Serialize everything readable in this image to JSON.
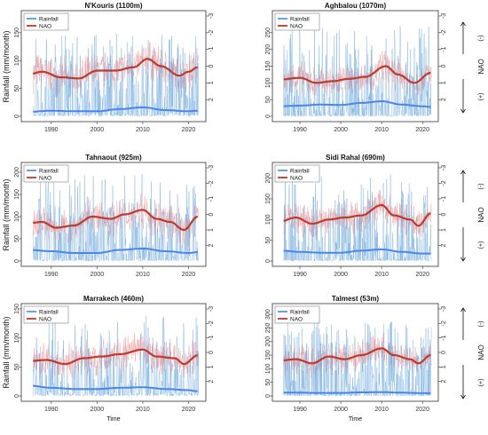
{
  "chart_data": [
    {
      "type": "line",
      "title": "N'Kouris (1100m)",
      "ylabel": "",
      "xlabel": "",
      "ylim": [
        0,
        180
      ],
      "yticks": [
        0,
        50,
        100,
        150
      ],
      "x_range": [
        1985,
        2023
      ],
      "xticks": [
        1990,
        2000,
        2010,
        2020
      ],
      "y2lim": [
        3,
        -3
      ],
      "y2ticks": [
        -3,
        -2,
        -1,
        0,
        1,
        2
      ],
      "legend": "top-left",
      "series": [
        {
          "name": "Rainfall",
          "color": "#6fa8dc",
          "smooth_color": "#4a86e8",
          "smooth": [
            [
              1985,
              8
            ],
            [
              1990,
              10
            ],
            [
              1995,
              9
            ],
            [
              2000,
              9
            ],
            [
              2005,
              13
            ],
            [
              2010,
              16
            ],
            [
              2015,
              11
            ],
            [
              2020,
              9
            ],
            [
              2022,
              10
            ]
          ],
          "spike_mean": 25,
          "spike_max": 150
        },
        {
          "name": "NAO",
          "color": "#c0392b",
          "band_color": "#f4a6a6",
          "smooth": [
            [
              1985,
              75
            ],
            [
              1988,
              80
            ],
            [
              1992,
              70
            ],
            [
              1996,
              68
            ],
            [
              2000,
              82
            ],
            [
              2004,
              82
            ],
            [
              2008,
              88
            ],
            [
              2011,
              103
            ],
            [
              2014,
              90
            ],
            [
              2018,
              73
            ],
            [
              2020,
              80
            ],
            [
              2022,
              88
            ]
          ],
          "band": 25
        }
      ]
    },
    {
      "type": "line",
      "title": "Aghbalou (1070m)",
      "ylabel": "",
      "xlabel": "",
      "ylim": [
        0,
        300
      ],
      "yticks": [
        0,
        50,
        100,
        150,
        200,
        250
      ],
      "x_range": [
        1985,
        2023
      ],
      "xticks": [
        1990,
        2000,
        2010,
        2020
      ],
      "y2lim": [
        3,
        -3
      ],
      "y2ticks": [
        -3,
        -2,
        -1,
        0,
        1,
        2
      ],
      "legend": "top-left",
      "series": [
        {
          "name": "Rainfall",
          "color": "#6fa8dc",
          "smooth_color": "#4a86e8",
          "smooth": [
            [
              1985,
              30
            ],
            [
              1990,
              32
            ],
            [
              1995,
              35
            ],
            [
              2000,
              34
            ],
            [
              2005,
              40
            ],
            [
              2010,
              45
            ],
            [
              2015,
              35
            ],
            [
              2020,
              30
            ],
            [
              2022,
              28
            ]
          ],
          "spike_mean": 55,
          "spike_max": 270
        },
        {
          "name": "NAO",
          "color": "#c0392b",
          "band_color": "#f4a6a6",
          "smooth": [
            [
              1985,
              110
            ],
            [
              1990,
              115
            ],
            [
              1994,
              100
            ],
            [
              1998,
              105
            ],
            [
              2002,
              112
            ],
            [
              2006,
              118
            ],
            [
              2011,
              150
            ],
            [
              2014,
              125
            ],
            [
              2018,
              100
            ],
            [
              2022,
              130
            ]
          ],
          "band": 35
        }
      ]
    },
    {
      "type": "line",
      "title": "Tahnaout (925m)",
      "ylabel": "",
      "xlabel": "",
      "ylim": [
        0,
        210
      ],
      "yticks": [
        0,
        50,
        100,
        150,
        200
      ],
      "x_range": [
        1985,
        2023
      ],
      "xticks": [
        1990,
        2000,
        2010,
        2020
      ],
      "y2lim": [
        3,
        -3
      ],
      "y2ticks": [
        -3,
        -2,
        -1,
        0,
        1,
        2
      ],
      "legend": "top-left",
      "series": [
        {
          "name": "Rainfall",
          "color": "#6fa8dc",
          "smooth_color": "#4a86e8",
          "smooth": [
            [
              1985,
              25
            ],
            [
              1990,
              22
            ],
            [
              1995,
              18
            ],
            [
              2000,
              18
            ],
            [
              2005,
              25
            ],
            [
              2010,
              28
            ],
            [
              2015,
              22
            ],
            [
              2020,
              18
            ],
            [
              2022,
              20
            ]
          ],
          "spike_mean": 40,
          "spike_max": 200
        },
        {
          "name": "NAO",
          "color": "#c0392b",
          "band_color": "#f4a6a6",
          "smooth": [
            [
              1985,
              85
            ],
            [
              1988,
              88
            ],
            [
              1991,
              75
            ],
            [
              1995,
              80
            ],
            [
              1999,
              100
            ],
            [
              2003,
              95
            ],
            [
              2006,
              105
            ],
            [
              2010,
              115
            ],
            [
              2013,
              95
            ],
            [
              2016,
              88
            ],
            [
              2019,
              70
            ],
            [
              2022,
              100
            ]
          ],
          "band": 30
        }
      ]
    },
    {
      "type": "line",
      "title": "Sidi Rahal (690m)",
      "ylabel": "",
      "xlabel": "",
      "ylim": [
        0,
        225
      ],
      "yticks": [
        0,
        50,
        100,
        150,
        200
      ],
      "x_range": [
        1985,
        2023
      ],
      "xticks": [
        1990,
        2000,
        2010,
        2020
      ],
      "y2lim": [
        3,
        -3
      ],
      "y2ticks": [
        -3,
        -2,
        -1,
        0,
        1,
        2
      ],
      "legend": "top-left",
      "series": [
        {
          "name": "Rainfall",
          "color": "#6fa8dc",
          "smooth_color": "#4a86e8",
          "smooth": [
            [
              1985,
              25
            ],
            [
              1990,
              22
            ],
            [
              1995,
              20
            ],
            [
              2000,
              20
            ],
            [
              2005,
              25
            ],
            [
              2010,
              28
            ],
            [
              2015,
              22
            ],
            [
              2020,
              18
            ],
            [
              2022,
              18
            ]
          ],
          "spike_mean": 45,
          "spike_max": 210
        },
        {
          "name": "NAO",
          "color": "#c0392b",
          "band_color": "#f4a6a6",
          "smooth": [
            [
              1985,
              95
            ],
            [
              1989,
              105
            ],
            [
              1993,
              90
            ],
            [
              1997,
              100
            ],
            [
              2001,
              105
            ],
            [
              2005,
              110
            ],
            [
              2010,
              135
            ],
            [
              2013,
              110
            ],
            [
              2017,
              100
            ],
            [
              2019,
              85
            ],
            [
              2022,
              115
            ]
          ],
          "band": 30
        }
      ]
    },
    {
      "type": "line",
      "title": "Marrakech (460m)",
      "ylabel": "",
      "xlabel": "Time",
      "ylim": [
        0,
        150
      ],
      "yticks": [
        0,
        50,
        100,
        150
      ],
      "x_range": [
        1985,
        2023
      ],
      "xticks": [
        1990,
        2000,
        2010,
        2020
      ],
      "y2lim": [
        3,
        -3
      ],
      "y2ticks": [
        -3,
        -2,
        -1,
        0,
        1,
        2
      ],
      "legend": "top-left",
      "series": [
        {
          "name": "Rainfall",
          "color": "#6fa8dc",
          "smooth_color": "#4a86e8",
          "smooth": [
            [
              1985,
              18
            ],
            [
              1990,
              14
            ],
            [
              1995,
              12
            ],
            [
              2000,
              12
            ],
            [
              2005,
              14
            ],
            [
              2010,
              15
            ],
            [
              2015,
              12
            ],
            [
              2020,
              10
            ],
            [
              2022,
              8
            ]
          ],
          "spike_mean": 30,
          "spike_max": 140
        },
        {
          "name": "NAO",
          "color": "#c0392b",
          "band_color": "#f4a6a6",
          "smooth": [
            [
              1985,
              60
            ],
            [
              1989,
              62
            ],
            [
              1993,
              55
            ],
            [
              1997,
              65
            ],
            [
              2001,
              68
            ],
            [
              2005,
              72
            ],
            [
              2010,
              80
            ],
            [
              2013,
              68
            ],
            [
              2017,
              65
            ],
            [
              2019,
              55
            ],
            [
              2022,
              70
            ]
          ],
          "band": 22
        }
      ]
    },
    {
      "type": "line",
      "title": "Talmest (53m)",
      "ylabel": "",
      "xlabel": "Time",
      "ylim": [
        0,
        320
      ],
      "yticks": [
        0,
        50,
        100,
        150,
        200,
        250,
        300
      ],
      "x_range": [
        1985,
        2023
      ],
      "xticks": [
        1990,
        2000,
        2010,
        2020
      ],
      "y2lim": [
        3,
        -3
      ],
      "y2ticks": [
        -3,
        -2,
        -1,
        0,
        1,
        2
      ],
      "legend": "top-left",
      "series": [
        {
          "name": "Rainfall",
          "color": "#6fa8dc",
          "smooth_color": "#4a86e8",
          "smooth": [
            [
              1985,
              12
            ],
            [
              1990,
              12
            ],
            [
              1995,
              11
            ],
            [
              2000,
              11
            ],
            [
              2005,
              13
            ],
            [
              2010,
              14
            ],
            [
              2015,
              12
            ],
            [
              2020,
              10
            ],
            [
              2022,
              10
            ]
          ],
          "spike_mean": 40,
          "spike_max": 290
        },
        {
          "name": "NAO",
          "color": "#c0392b",
          "band_color": "#f4a6a6",
          "smooth": [
            [
              1985,
              130
            ],
            [
              1989,
              135
            ],
            [
              1993,
              120
            ],
            [
              1997,
              145
            ],
            [
              2001,
              135
            ],
            [
              2005,
              150
            ],
            [
              2010,
              175
            ],
            [
              2013,
              150
            ],
            [
              2017,
              135
            ],
            [
              2019,
              120
            ],
            [
              2022,
              150
            ]
          ],
          "band": 40
        }
      ]
    }
  ],
  "ylabel": "Rainfall (mm/month)",
  "nao_label": "NAO",
  "nao_minus": "(-)",
  "nao_plus": "(+)"
}
